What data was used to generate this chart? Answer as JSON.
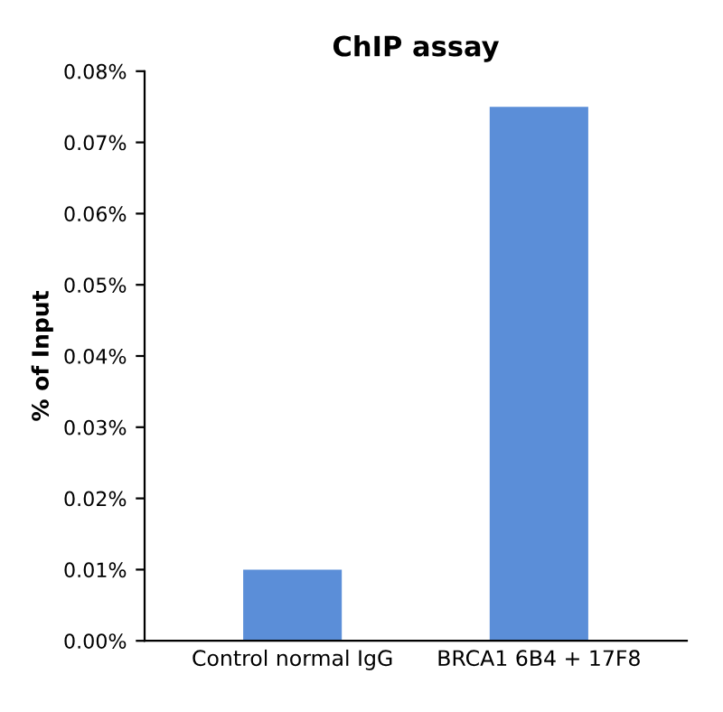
{
  "chart_data": {
    "type": "bar",
    "title": "ChIP assay",
    "ylabel": "% of Input",
    "categories": [
      "Control normal IgG",
      "BRCA1 6B4 + 17F8"
    ],
    "values": [
      0.01,
      0.075
    ],
    "color": "#5b8ed8",
    "ylim": [
      0,
      0.08
    ],
    "yticks": [
      {
        "value": 0,
        "label": "0.00%"
      },
      {
        "value": 0.01,
        "label": "0.01%"
      },
      {
        "value": 0.02,
        "label": "0.02%"
      },
      {
        "value": 0.03,
        "label": "0.03%"
      },
      {
        "value": 0.04,
        "label": "0.04%"
      },
      {
        "value": 0.05,
        "label": "0.05%"
      },
      {
        "value": 0.06,
        "label": "0.06%"
      },
      {
        "value": 0.07,
        "label": "0.07%"
      },
      {
        "value": 0.08,
        "label": "0.08%"
      }
    ],
    "grid": false
  }
}
